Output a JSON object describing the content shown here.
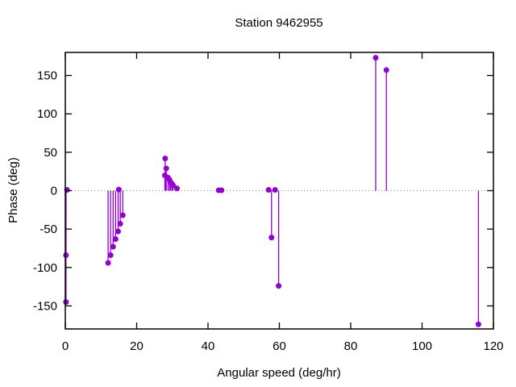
{
  "chart_data": {
    "type": "scatter",
    "style": "impulses-with-filled-circle-markers",
    "title": "Station 9462955",
    "xlabel": "Angular speed (deg/hr)",
    "ylabel": "Phase (deg)",
    "xlim": [
      0,
      120
    ],
    "ylim": [
      -180,
      180
    ],
    "xticks": [
      0,
      20,
      40,
      60,
      80,
      100,
      120
    ],
    "yticks": [
      -150,
      -100,
      -50,
      0,
      50,
      100,
      150
    ],
    "grid": false,
    "legend": "none",
    "zero_line": {
      "y": 0,
      "style": "dotted",
      "color": "#8a8a8a"
    },
    "series": [
      {
        "name": "phase",
        "color": "#9400d3",
        "marker": "filled-circle",
        "points": [
          [
            0.2,
            -145
          ],
          [
            0.2,
            -84
          ],
          [
            0.5,
            1
          ],
          [
            12.0,
            -94
          ],
          [
            12.7,
            -84
          ],
          [
            13.4,
            -73
          ],
          [
            14.1,
            -63
          ],
          [
            14.8,
            -53
          ],
          [
            15.4,
            -43
          ],
          [
            16.1,
            -32
          ],
          [
            15.0,
            1.5
          ],
          [
            28.0,
            42
          ],
          [
            28.3,
            29
          ],
          [
            27.9,
            20
          ],
          [
            28.8,
            17
          ],
          [
            29.2,
            14
          ],
          [
            29.5,
            11
          ],
          [
            29.9,
            9
          ],
          [
            30.2,
            7
          ],
          [
            31.3,
            3
          ],
          [
            43.0,
            0.5
          ],
          [
            43.8,
            0.5
          ],
          [
            57.0,
            1
          ],
          [
            57.8,
            -61
          ],
          [
            58.8,
            1
          ],
          [
            59.8,
            -124
          ],
          [
            87.0,
            173
          ],
          [
            90.0,
            157
          ],
          [
            115.8,
            -174
          ]
        ]
      }
    ]
  },
  "colors": {
    "background": "#ffffff",
    "axis": "#000000",
    "series": "#9400d3",
    "zero_line": "#8a8a8a"
  }
}
